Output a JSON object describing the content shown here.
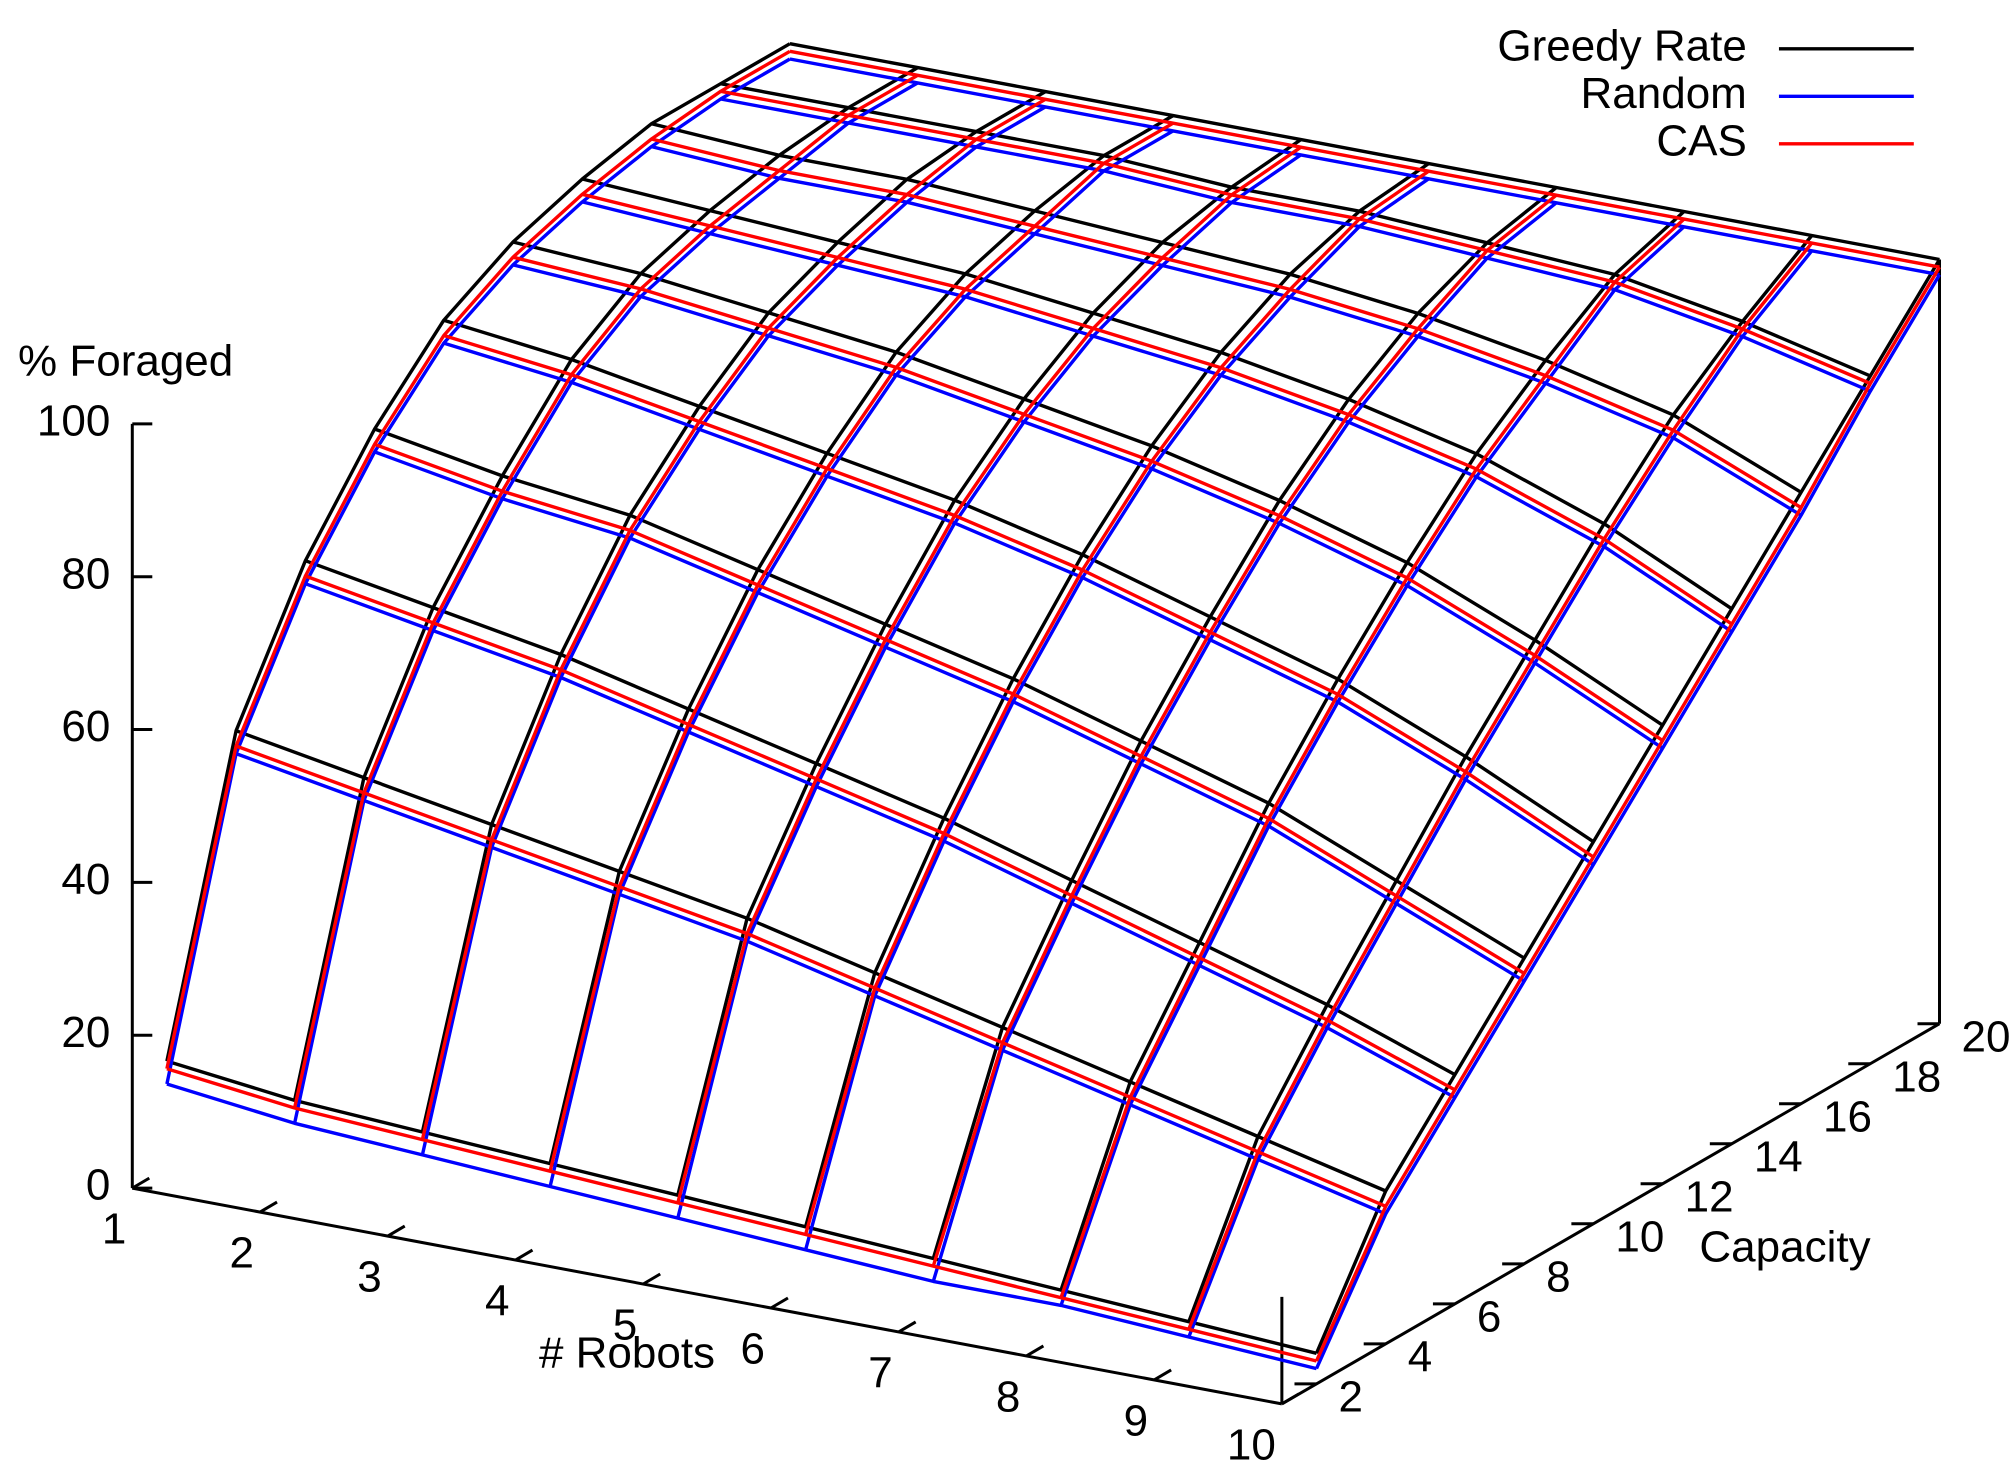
{
  "chart_data": {
    "type": "surface",
    "xlabel": "# Robots",
    "ylabel": "Capacity",
    "zlabel": "% Foraged",
    "x": [
      1,
      2,
      3,
      4,
      5,
      6,
      7,
      8,
      9,
      10
    ],
    "y": [
      2,
      4,
      6,
      8,
      10,
      12,
      14,
      16,
      18,
      20
    ],
    "xlim": [
      1,
      10
    ],
    "ylim": [
      1,
      20
    ],
    "zlim": [
      0,
      100
    ],
    "xticks": [
      1,
      2,
      3,
      4,
      5,
      6,
      7,
      8,
      9,
      10
    ],
    "yticks": [
      2,
      4,
      6,
      8,
      10,
      12,
      14,
      16,
      18,
      20
    ],
    "zticks": [
      0,
      20,
      40,
      60,
      80,
      100
    ],
    "legend": "top-right",
    "series": [
      {
        "name": "Greedy Rate",
        "color": "#000000",
        "values": [
          [
            14,
            52,
            69,
            81,
            90,
            95,
            98,
            100,
            100,
            100
          ],
          [
            12,
            49,
            66,
            78,
            88,
            94,
            97,
            99,
            100,
            100
          ],
          [
            11,
            46,
            63,
            76,
            85,
            92,
            96,
            99,
            100,
            100
          ],
          [
            10,
            43,
            59,
            72,
            82,
            90,
            95,
            98,
            100,
            100
          ],
          [
            9,
            40,
            55,
            68,
            79,
            87,
            93,
            97,
            99,
            100
          ],
          [
            8,
            36,
            51,
            64,
            75,
            84,
            91,
            96,
            99,
            100
          ],
          [
            7,
            32,
            46,
            59,
            70,
            80,
            88,
            94,
            98,
            100
          ],
          [
            6,
            28,
            41,
            54,
            65,
            75,
            84,
            91,
            97,
            100
          ],
          [
            5,
            24,
            36,
            47,
            58,
            68,
            78,
            87,
            94,
            100
          ],
          [
            4,
            20,
            30,
            40,
            50,
            60,
            70,
            80,
            90,
            100
          ]
        ]
      },
      {
        "name": "Random",
        "color": "#0000ff",
        "values": [
          [
            11,
            49,
            66,
            78,
            87,
            92,
            95,
            97,
            98,
            98
          ],
          [
            9,
            46,
            63,
            75,
            85,
            91,
            94,
            96,
            98,
            98
          ],
          [
            8,
            43,
            60,
            73,
            82,
            89,
            93,
            96,
            98,
            98
          ],
          [
            7,
            40,
            56,
            69,
            79,
            87,
            92,
            95,
            98,
            98
          ],
          [
            6,
            37,
            52,
            65,
            76,
            84,
            90,
            94,
            97,
            98
          ],
          [
            5,
            33,
            48,
            61,
            72,
            81,
            88,
            93,
            97,
            98
          ],
          [
            4,
            29,
            43,
            56,
            67,
            77,
            85,
            91,
            96,
            98
          ],
          [
            4,
            25,
            38,
            51,
            62,
            72,
            81,
            88,
            95,
            98
          ],
          [
            3,
            21,
            33,
            44,
            55,
            65,
            75,
            84,
            92,
            98
          ],
          [
            2,
            17,
            27,
            37,
            47,
            57,
            67,
            77,
            88,
            98
          ]
        ]
      },
      {
        "name": "CAS",
        "color": "#ff0000",
        "values": [
          [
            13,
            50,
            67,
            79,
            88,
            93,
            96,
            98,
            99,
            99
          ],
          [
            11,
            47,
            64,
            76,
            86,
            92,
            95,
            97,
            99,
            99
          ],
          [
            10,
            44,
            61,
            74,
            83,
            90,
            94,
            97,
            99,
            99
          ],
          [
            9,
            41,
            57,
            70,
            80,
            88,
            93,
            96,
            99,
            99
          ],
          [
            8,
            38,
            53,
            66,
            77,
            85,
            91,
            95,
            98,
            99
          ],
          [
            7,
            34,
            49,
            62,
            73,
            82,
            89,
            94,
            98,
            99
          ],
          [
            6,
            30,
            44,
            57,
            68,
            78,
            86,
            92,
            97,
            99
          ],
          [
            5,
            26,
            39,
            52,
            63,
            73,
            82,
            89,
            96,
            99
          ],
          [
            4,
            22,
            34,
            45,
            56,
            66,
            76,
            85,
            93,
            99
          ],
          [
            3,
            18,
            28,
            38,
            48,
            58,
            68,
            78,
            89,
            99
          ]
        ]
      }
    ]
  }
}
